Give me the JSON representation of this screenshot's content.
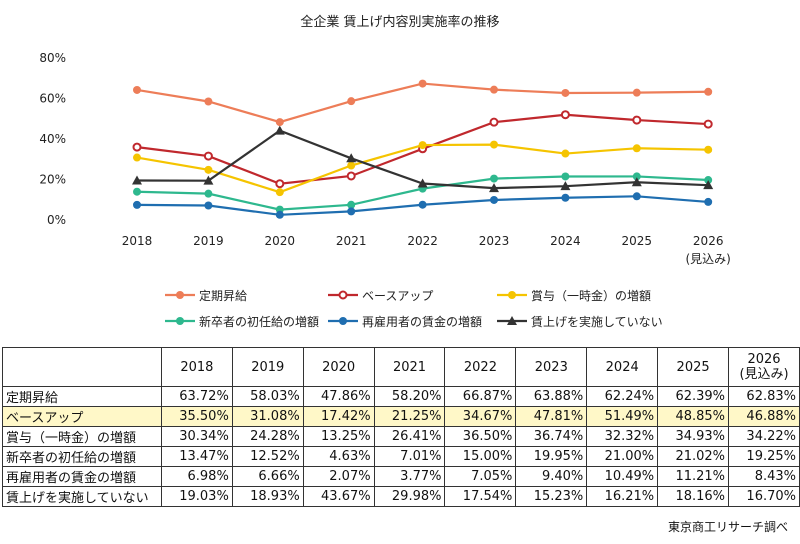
{
  "chart_data": {
    "type": "line",
    "title": "全企業 賃上げ内容別実施率の推移",
    "categories": [
      "2018",
      "2019",
      "2020",
      "2021",
      "2022",
      "2023",
      "2024",
      "2025",
      "2026"
    ],
    "category_sublabels": [
      "",
      "",
      "",
      "",
      "",
      "",
      "",
      "",
      "(見込み)"
    ],
    "ylim": [
      0,
      80
    ],
    "yticks": [
      "0%",
      "20%",
      "40%",
      "60%",
      "80%"
    ],
    "grid": false,
    "legend": "bottom",
    "series": [
      {
        "name": "定期昇給",
        "color": "#ED7D58",
        "marker": "circle",
        "values": [
          63.72,
          58.03,
          47.86,
          58.2,
          66.87,
          63.88,
          62.24,
          62.39,
          62.83
        ],
        "labels": [
          "63.72%",
          "58.03%",
          "47.86%",
          "58.20%",
          "66.87%",
          "63.88%",
          "62.24%",
          "62.39%",
          "62.83%"
        ]
      },
      {
        "name": "ベースアップ",
        "color": "#C0282D",
        "marker": "open-circle",
        "values": [
          35.5,
          31.08,
          17.42,
          21.25,
          34.67,
          47.81,
          51.49,
          48.85,
          46.88
        ],
        "labels": [
          "35.50%",
          "31.08%",
          "17.42%",
          "21.25%",
          "34.67%",
          "47.81%",
          "51.49%",
          "48.85%",
          "46.88%"
        ]
      },
      {
        "name": "賞与（一時金）の増額",
        "color": "#F5C400",
        "marker": "circle",
        "values": [
          30.34,
          24.28,
          13.25,
          26.41,
          36.5,
          36.74,
          32.32,
          34.93,
          34.22
        ],
        "labels": [
          "30.34%",
          "24.28%",
          "13.25%",
          "26.41%",
          "36.50%",
          "36.74%",
          "32.32%",
          "34.93%",
          "34.22%"
        ]
      },
      {
        "name": "新卒者の初任給の増額",
        "color": "#2EB88E",
        "marker": "circle",
        "values": [
          13.47,
          12.52,
          4.63,
          7.01,
          15.0,
          19.95,
          21.0,
          21.02,
          19.25
        ],
        "labels": [
          "13.47%",
          "12.52%",
          "4.63%",
          "7.01%",
          "15.00%",
          "19.95%",
          "21.00%",
          "21.02%",
          "19.25%"
        ]
      },
      {
        "name": "再雇用者の賃金の増額",
        "color": "#1F6EB0",
        "marker": "circle",
        "values": [
          6.98,
          6.66,
          2.07,
          3.77,
          7.05,
          9.4,
          10.49,
          11.21,
          8.43
        ],
        "labels": [
          "6.98%",
          "6.66%",
          "2.07%",
          "3.77%",
          "7.05%",
          "9.40%",
          "10.49%",
          "11.21%",
          "8.43%"
        ]
      },
      {
        "name": "賃上げを実施していない",
        "color": "#333333",
        "marker": "triangle",
        "values": [
          19.03,
          18.93,
          43.67,
          29.98,
          17.54,
          15.23,
          16.21,
          18.16,
          16.7
        ],
        "labels": [
          "19.03%",
          "18.93%",
          "43.67%",
          "29.98%",
          "17.54%",
          "15.23%",
          "16.21%",
          "18.16%",
          "16.70%"
        ]
      }
    ],
    "table_highlight_row": 1,
    "table_highlight_color": "#FFF8C8"
  },
  "source": "東京商工リサーチ調べ"
}
